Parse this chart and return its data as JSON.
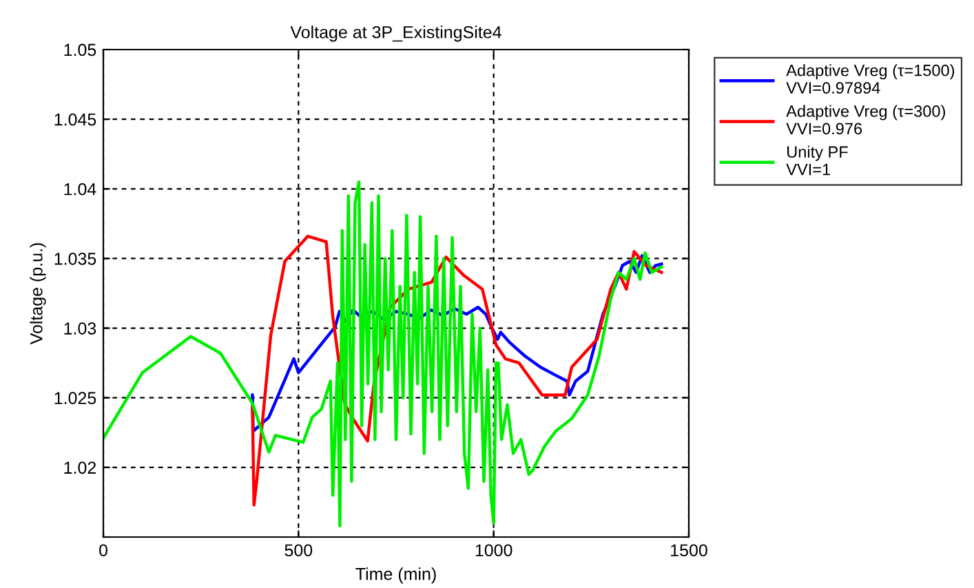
{
  "chart_data": {
    "type": "line",
    "title": "Voltage at 3P_ExistingSite4",
    "xlabel": "Time (min)",
    "ylabel": "Voltage (p.u.)",
    "xlim": [
      0,
      1500
    ],
    "xticks": [
      0,
      500,
      1000,
      1500
    ],
    "ylim": [
      1.015,
      1.05
    ],
    "yticks": [
      {
        "value": 1.015,
        "label": null
      },
      1.02,
      1.025,
      1.03,
      1.035,
      1.04,
      1.045,
      1.05
    ],
    "grid": true,
    "legend": "top right",
    "line_style": "solid",
    "marker": "none",
    "series": [
      {
        "name": "Adaptive Vreg (τ=1500)\nVVI=0.97894",
        "color": "#0000ff",
        "x": [
          382,
          384,
          424,
          488,
          500,
          594,
          605,
          620,
          640,
          660,
          690,
          720,
          750,
          780,
          810,
          840,
          870,
          900,
          930,
          960,
          980,
          994,
          1010,
          1018,
          1040,
          1080,
          1120,
          1160,
          1188,
          1194,
          1210,
          1241,
          1280,
          1312,
          1330,
          1349,
          1365,
          1380,
          1400,
          1415,
          1430
        ],
        "values": [
          1.0252,
          1.0226,
          1.0236,
          1.0278,
          1.0268,
          1.0301,
          1.0312,
          1.0305,
          1.0313,
          1.0308,
          1.0312,
          1.0306,
          1.0312,
          1.031,
          1.0307,
          1.0313,
          1.0309,
          1.0314,
          1.031,
          1.0315,
          1.031,
          1.0301,
          1.0292,
          1.0297,
          1.029,
          1.028,
          1.0272,
          1.0266,
          1.0262,
          1.0252,
          1.0262,
          1.0269,
          1.031,
          1.0331,
          1.0345,
          1.0348,
          1.034,
          1.0352,
          1.034,
          1.0345,
          1.0346
        ]
      },
      {
        "name": "Adaptive Vreg (τ=300)\nVVI=0.976",
        "color": "#ff0000",
        "x": [
          382,
          386,
          394,
          429,
          465,
          524,
          571,
          588,
          618,
          637,
          677,
          694,
          735,
          782,
          841,
          878,
          923,
          971,
          1006,
          1030,
          1065,
          1124,
          1183,
          1200,
          1265,
          1300,
          1320,
          1340,
          1360,
          1390,
          1430
        ],
        "values": [
          1.0243,
          1.0173,
          1.0193,
          1.0295,
          1.0348,
          1.0366,
          1.0362,
          1.0308,
          1.0246,
          1.0236,
          1.0219,
          1.0262,
          1.0315,
          1.0328,
          1.0333,
          1.0351,
          1.0338,
          1.0328,
          1.0288,
          1.0278,
          1.0275,
          1.0252,
          1.0252,
          1.0272,
          1.0292,
          1.0328,
          1.034,
          1.0328,
          1.0355,
          1.0345,
          1.034
        ]
      },
      {
        "name": "Unity PF\nVVI=1",
        "color": "#00ee00",
        "x": [
          0,
          100,
          224,
          300,
          382,
          424,
          441,
          512,
          535,
          559,
          582,
          588,
          600,
          606,
          612,
          620,
          628,
          636,
          645,
          655,
          662,
          670,
          678,
          688,
          696,
          705,
          712,
          722,
          730,
          740,
          750,
          760,
          768,
          777,
          788,
          797,
          805,
          812,
          822,
          832,
          842,
          853,
          862,
          872,
          882,
          894,
          905,
          915,
          925,
          935,
          945,
          955,
          965,
          975,
          985,
          993,
          1000,
          1006,
          1012,
          1020,
          1035,
          1050,
          1070,
          1090,
          1100,
          1130,
          1159,
          1200,
          1241,
          1270,
          1300,
          1320,
          1340,
          1360,
          1375,
          1388,
          1405,
          1430
        ],
        "values": [
          1.0221,
          1.0268,
          1.0294,
          1.0282,
          1.0246,
          1.0211,
          1.0223,
          1.0218,
          1.0236,
          1.0242,
          1.0262,
          1.018,
          1.0275,
          1.0158,
          1.037,
          1.022,
          1.0395,
          1.019,
          1.039,
          1.0405,
          1.023,
          1.036,
          1.026,
          1.039,
          1.022,
          1.0395,
          1.024,
          1.035,
          1.027,
          1.037,
          1.022,
          1.033,
          1.025,
          1.0381,
          1.0224,
          1.034,
          1.026,
          1.038,
          1.021,
          1.033,
          1.024,
          1.0366,
          1.022,
          1.035,
          1.023,
          1.0365,
          1.024,
          1.033,
          1.021,
          1.0185,
          1.031,
          1.024,
          1.03,
          1.019,
          1.027,
          1.018,
          1.016,
          1.0275,
          1.0275,
          1.022,
          1.0245,
          1.021,
          1.022,
          1.0195,
          1.0198,
          1.0215,
          1.0226,
          1.0235,
          1.0252,
          1.028,
          1.0321,
          1.034,
          1.0335,
          1.035,
          1.0335,
          1.0354,
          1.034,
          1.0344
        ]
      }
    ]
  }
}
